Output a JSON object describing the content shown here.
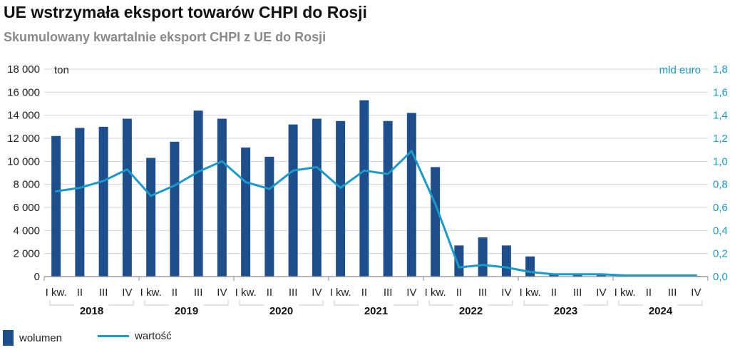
{
  "chart_data": {
    "type": "bar",
    "title": "UE wstrzymała eksport towarów CHPI do Rosji",
    "subtitle": "Skumulowany kwartalnie eksport CHPI z UE do Rosji",
    "left_axis": {
      "unit": "ton",
      "range": [
        0,
        18000
      ],
      "ticks": [
        0,
        2000,
        4000,
        6000,
        8000,
        10000,
        12000,
        14000,
        16000,
        18000
      ],
      "tick_labels": [
        "0",
        "2 000",
        "4 000",
        "6 000",
        "8 000",
        "10 000",
        "12 000",
        "14 000",
        "16 000",
        "18 000"
      ]
    },
    "right_axis": {
      "unit": "mld euro",
      "range": [
        0,
        1.8
      ],
      "ticks": [
        0,
        0.2,
        0.4,
        0.6,
        0.8,
        1.0,
        1.2,
        1.4,
        1.6,
        1.8
      ],
      "tick_labels": [
        "0,0",
        "0,2",
        "0,4",
        "0,6",
        "0,8",
        "1,0",
        "1,2",
        "1,4",
        "1,6",
        "1,8"
      ]
    },
    "categories": [
      "I kw.",
      "II",
      "III",
      "IV",
      "I kw.",
      "II",
      "III",
      "IV",
      "I kw.",
      "II",
      "III",
      "IV",
      "I kw.",
      "II",
      "III",
      "IV",
      "I kw.",
      "II",
      "III",
      "IV",
      "I kw.",
      "II",
      "III",
      "IV",
      "I kw.",
      "II",
      "III",
      "IV"
    ],
    "years": [
      "2018",
      "2019",
      "2020",
      "2021",
      "2022",
      "2023",
      "2024"
    ],
    "grid": true,
    "legend_position": "bottom-left",
    "series": [
      {
        "name": "wolumen",
        "kind": "bar",
        "axis": "left",
        "color": "#1f4e8c",
        "values": [
          12200,
          12900,
          13000,
          13700,
          10300,
          11700,
          14400,
          13700,
          11200,
          10400,
          13200,
          13700,
          13500,
          15300,
          13500,
          14200,
          9500,
          2700,
          3400,
          2700,
          1750,
          200,
          150,
          150,
          50,
          50,
          50,
          50
        ]
      },
      {
        "name": "wartość",
        "kind": "line",
        "axis": "right",
        "color": "#1a9ac9",
        "values": [
          0.74,
          0.77,
          0.83,
          0.93,
          0.7,
          0.79,
          0.91,
          1.0,
          0.82,
          0.76,
          0.92,
          0.95,
          0.77,
          0.92,
          0.89,
          1.09,
          0.63,
          0.08,
          0.1,
          0.08,
          0.04,
          0.02,
          0.02,
          0.02,
          0.01,
          0.01,
          0.01,
          0.01
        ]
      }
    ]
  }
}
